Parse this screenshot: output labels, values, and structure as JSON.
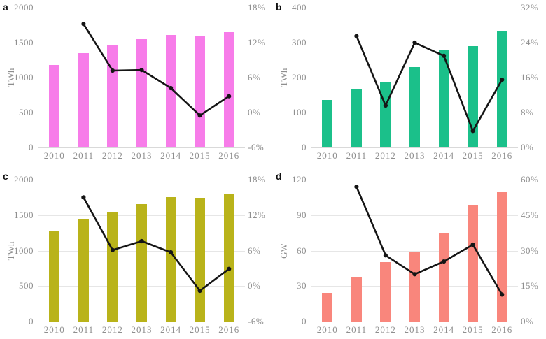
{
  "figure": {
    "background": "#ffffff",
    "axis_text_color": "#8e8e8e",
    "line_color": "#151515",
    "gridline_color": "#e6e6e6"
  },
  "chart_data": [
    {
      "panel_label": "a",
      "type": "bar+line",
      "categories": [
        "2010",
        "2011",
        "2012",
        "2013",
        "2014",
        "2015",
        "2016"
      ],
      "ylabel_left": "TWh",
      "left_tick_labels": [
        "2000",
        "1500",
        "1000",
        "500",
        "0"
      ],
      "left_max": 2000,
      "right_tick_labels": [
        "18%",
        "12%",
        "6%",
        "0%",
        "-6%"
      ],
      "right_min": -6,
      "right_max": 18,
      "bar_color": "#f77ce9",
      "bars": [
        1180,
        1350,
        1460,
        1555,
        1615,
        1600,
        1655
      ],
      "line_pct": [
        null,
        15.2,
        7.2,
        7.3,
        4.2,
        -0.5,
        2.8
      ]
    },
    {
      "panel_label": "b",
      "type": "bar+line",
      "categories": [
        "2010",
        "2011",
        "2012",
        "2013",
        "2014",
        "2015",
        "2016"
      ],
      "ylabel_left": "TWh",
      "left_tick_labels": [
        "400",
        "300",
        "200",
        "100",
        "0"
      ],
      "left_max": 400,
      "right_tick_labels": [
        "32%",
        "24%",
        "16%",
        "8%",
        "0%"
      ],
      "right_min": 0,
      "right_max": 32,
      "bar_color": "#1bc08a",
      "bars": [
        136,
        168,
        187,
        231,
        279,
        290,
        333
      ],
      "line_pct": [
        null,
        25.5,
        9.6,
        24,
        21,
        3.8,
        15.5
      ]
    },
    {
      "panel_label": "c",
      "type": "bar+line",
      "categories": [
        "2010",
        "2011",
        "2012",
        "2013",
        "2014",
        "2015",
        "2016"
      ],
      "ylabel_left": "TWh",
      "left_tick_labels": [
        "2000",
        "1500",
        "1000",
        "500",
        "0"
      ],
      "left_max": 2000,
      "right_tick_labels": [
        "18%",
        "12%",
        "6%",
        "0%",
        "-6%"
      ],
      "right_min": -6,
      "right_max": 18,
      "bar_color": "#b9b31a",
      "bars": [
        1270,
        1450,
        1545,
        1660,
        1755,
        1745,
        1800
      ],
      "line_pct": [
        null,
        15,
        6.1,
        7.6,
        5.7,
        -0.8,
        2.9
      ]
    },
    {
      "panel_label": "d",
      "type": "bar+line",
      "categories": [
        "2010",
        "2011",
        "2012",
        "2013",
        "2014",
        "2015",
        "2016"
      ],
      "ylabel_left": "GW",
      "left_tick_labels": [
        "120",
        "90",
        "60",
        "30",
        "0"
      ],
      "left_max": 120,
      "right_tick_labels": [
        "60%",
        "45%",
        "30%",
        "15%",
        "0%"
      ],
      "right_min": 0,
      "right_max": 60,
      "bar_color": "#f9867c",
      "bars": [
        24,
        38,
        50,
        59,
        75,
        99,
        110
      ],
      "line_pct": [
        null,
        57,
        28,
        20,
        25.4,
        32.5,
        11.4
      ]
    }
  ]
}
